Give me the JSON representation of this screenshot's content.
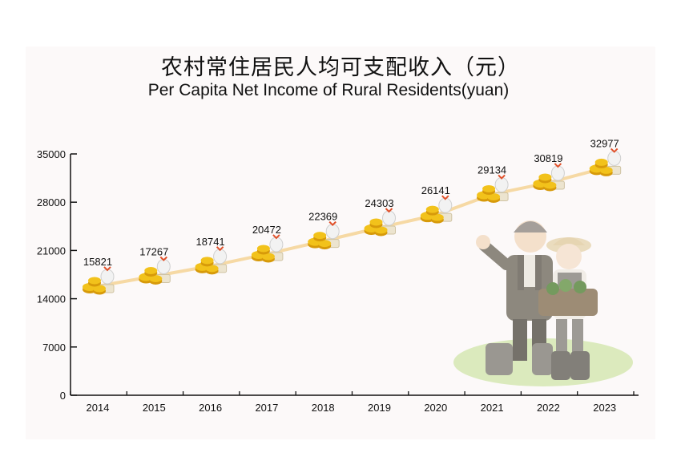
{
  "title_cn": "农村常住居民人均可支配收入（元）",
  "title_en": "Per Capita Net Income of Rural Residents(yuan)",
  "colors": {
    "line": "#f6d9a4",
    "coin": "#f2c21b",
    "coin_dark": "#d79a0a",
    "axis": "#111111",
    "bow": "#e0502a",
    "ground": "#cfe3a8"
  },
  "chart_data": {
    "type": "line",
    "title": "农村常住居民人均可支配收入（元）",
    "subtitle": "Per Capita Net Income of Rural Residents(yuan)",
    "xlabel": "",
    "ylabel": "",
    "categories": [
      "2014",
      "2015",
      "2016",
      "2017",
      "2018",
      "2019",
      "2020",
      "2021",
      "2022",
      "2023"
    ],
    "values": [
      15821,
      17267,
      18741,
      20472,
      22369,
      24303,
      26141,
      29134,
      30819,
      32977
    ],
    "value_labels": [
      "15821",
      "17267",
      "18741",
      "20472",
      "22369",
      "24303",
      "26141",
      "29134",
      "30819",
      "32977"
    ],
    "ylim": [
      0,
      35000
    ],
    "yticks": [
      0,
      7000,
      14000,
      21000,
      28000,
      35000
    ],
    "ytick_labels": [
      "0",
      "7000",
      "14000",
      "21000",
      "28000",
      "35000"
    ],
    "grid": false,
    "legend": "none",
    "marker": "coin-stack-with-money-bag-icon",
    "decoration": "farmer-couple-illustration"
  }
}
